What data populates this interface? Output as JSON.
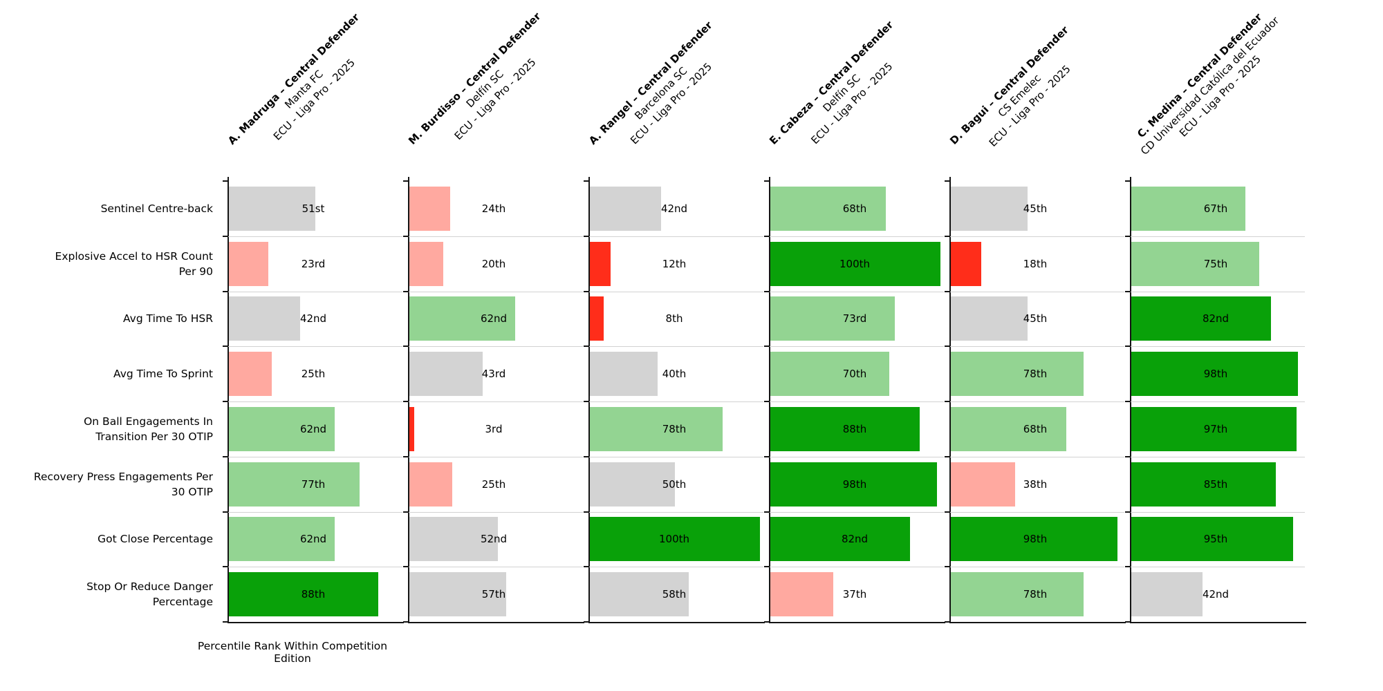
{
  "chart_data": {
    "type": "bar",
    "orientation": "horizontal",
    "title": "",
    "xlabel": "Percentile Rank Within Competition Edition",
    "xlim": [
      0,
      102
    ],
    "grid": "row-separators-only",
    "value_label_format": "ordinal percentile",
    "metrics": [
      "Sentinel Centre-back",
      "Explosive Accel to HSR Count\nPer 90",
      "Avg Time To HSR",
      "Avg Time To Sprint",
      "On Ball Engagements In\nTransition Per 30 OTIP",
      "Recovery Press Engagements Per\n30 OTIP",
      "Got Close Percentage",
      "Stop Or Reduce Danger\nPercentage"
    ],
    "players": [
      {
        "name": "A. Madruga – Central Defender",
        "team": "Manta FC",
        "competition": "ECU - Liga Pro - 2025",
        "values": [
          51,
          23,
          42,
          25,
          62,
          77,
          62,
          88
        ],
        "labels": [
          "51st",
          "23rd",
          "42nd",
          "25th",
          "62nd",
          "77th",
          "62nd",
          "88th"
        ]
      },
      {
        "name": "M. Burdisso – Central Defender",
        "team": "Delfín SC",
        "competition": "ECU - Liga Pro - 2025",
        "values": [
          24,
          20,
          62,
          43,
          3,
          25,
          52,
          57
        ],
        "labels": [
          "24th",
          "20th",
          "62nd",
          "43rd",
          "3rd",
          "25th",
          "52nd",
          "57th"
        ]
      },
      {
        "name": "A. Rangel – Central Defender",
        "team": "Barcelona SC",
        "competition": "ECU - Liga Pro - 2025",
        "values": [
          42,
          12,
          8,
          40,
          78,
          50,
          100,
          58
        ],
        "labels": [
          "42nd",
          "12th",
          "8th",
          "40th",
          "78th",
          "50th",
          "100th",
          "58th"
        ]
      },
      {
        "name": "E. Cabeza – Central Defender",
        "team": "Delfín SC",
        "competition": "ECU - Liga Pro - 2025",
        "values": [
          68,
          100,
          73,
          70,
          88,
          98,
          82,
          37
        ],
        "labels": [
          "68th",
          "100th",
          "73rd",
          "70th",
          "88th",
          "98th",
          "82nd",
          "37th"
        ]
      },
      {
        "name": "D. Bagui – Central Defender",
        "team": "CS Emelec",
        "competition": "ECU - Liga Pro - 2025",
        "values": [
          45,
          18,
          45,
          78,
          68,
          38,
          98,
          78
        ],
        "labels": [
          "45th",
          "18th",
          "45th",
          "78th",
          "68th",
          "38th",
          "98th",
          "78th"
        ]
      },
      {
        "name": "C. Medina – Central Defender",
        "team": "CD Universidad Católica del Ecuador",
        "competition": "ECU - Liga Pro - 2025",
        "values": [
          67,
          75,
          82,
          98,
          97,
          85,
          95,
          42
        ],
        "labels": [
          "67th",
          "75th",
          "82nd",
          "98th",
          "97th",
          "85th",
          "95th",
          "42nd"
        ]
      }
    ],
    "color_scale": [
      {
        "max": 19,
        "color": "#ff2d1a",
        "meaning": "very low percentile"
      },
      {
        "max": 39,
        "color": "#ffa9a0",
        "meaning": "low percentile"
      },
      {
        "max": 59,
        "color": "#d3d3d3",
        "meaning": "average percentile"
      },
      {
        "max": 79,
        "color": "#93d492",
        "meaning": "good percentile"
      },
      {
        "max": 100,
        "color": "#09a109",
        "meaning": "elite percentile"
      }
    ]
  }
}
